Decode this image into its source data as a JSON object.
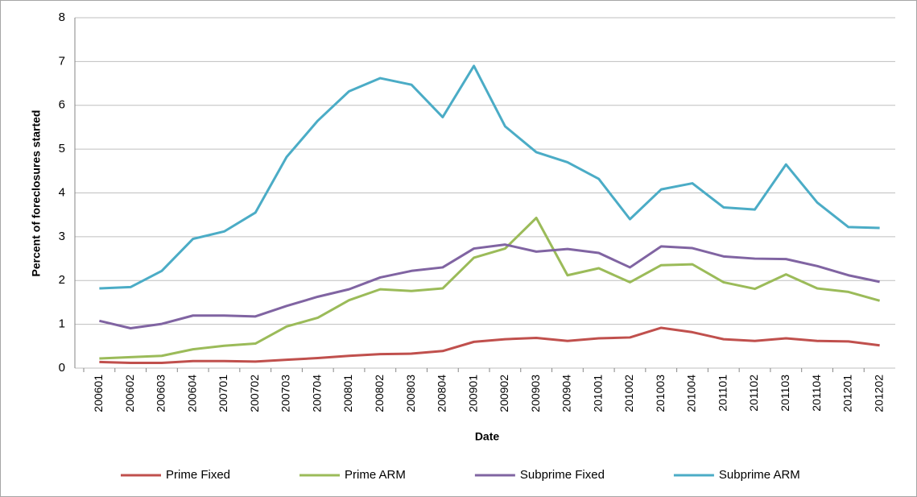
{
  "chart_data": {
    "type": "line",
    "x_label": "Date",
    "y_label": "Percent of foreclosures started",
    "categories": [
      "200601",
      "200602",
      "200603",
      "200604",
      "200701",
      "200702",
      "200703",
      "200704",
      "200801",
      "200802",
      "200803",
      "200804",
      "200901",
      "200902",
      "200903",
      "200904",
      "201001",
      "201002",
      "201003",
      "201004",
      "201101",
      "201102",
      "201103",
      "201104",
      "201201",
      "201202"
    ],
    "ylim": [
      0,
      8
    ],
    "yticks": [
      0,
      1,
      2,
      3,
      4,
      5,
      6,
      7,
      8
    ],
    "grid": true,
    "legend": "bottom",
    "series": [
      {
        "name": "Prime Fixed",
        "color": "#c0504d",
        "values": [
          0.14,
          0.12,
          0.12,
          0.16,
          0.16,
          0.15,
          0.19,
          0.23,
          0.28,
          0.32,
          0.33,
          0.39,
          0.6,
          0.66,
          0.69,
          0.62,
          0.68,
          0.7,
          0.92,
          0.82,
          0.66,
          0.62,
          0.68,
          0.62,
          0.61,
          0.52
        ]
      },
      {
        "name": "Prime ARM",
        "color": "#9bbb59",
        "values": [
          0.22,
          0.25,
          0.28,
          0.43,
          0.51,
          0.56,
          0.95,
          1.15,
          1.55,
          1.8,
          1.76,
          1.82,
          2.52,
          2.73,
          3.43,
          2.12,
          2.28,
          1.96,
          2.35,
          2.37,
          1.96,
          1.81,
          2.14,
          1.82,
          1.74,
          1.54
        ]
      },
      {
        "name": "Subprime Fixed",
        "color": "#8064a2",
        "values": [
          1.08,
          0.91,
          1.01,
          1.2,
          1.2,
          1.18,
          1.42,
          1.63,
          1.8,
          2.07,
          2.22,
          2.3,
          2.73,
          2.82,
          2.66,
          2.72,
          2.63,
          2.3,
          2.78,
          2.74,
          2.55,
          2.5,
          2.49,
          2.33,
          2.12,
          1.97
        ]
      },
      {
        "name": "Subprime ARM",
        "color": "#4bacc6",
        "values": [
          1.82,
          1.85,
          2.22,
          2.95,
          3.12,
          3.55,
          4.82,
          5.65,
          6.32,
          6.62,
          6.47,
          5.73,
          6.9,
          5.52,
          4.93,
          4.7,
          4.32,
          3.4,
          4.08,
          4.22,
          3.67,
          3.62,
          4.65,
          3.78,
          3.22,
          3.2
        ]
      }
    ]
  }
}
